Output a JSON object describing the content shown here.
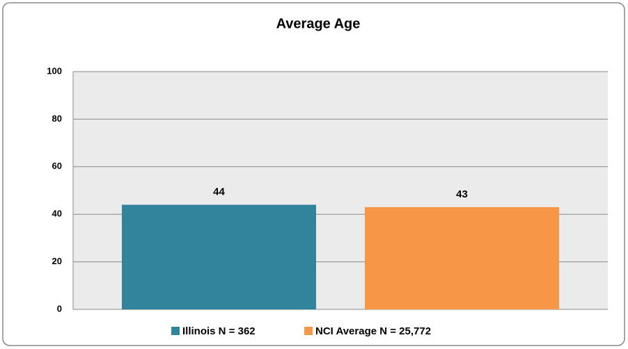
{
  "chart_data": {
    "type": "bar",
    "title": "Average Age",
    "categories": [
      null
    ],
    "series": [
      {
        "name": "Illinois N = 362",
        "color": "#31849b",
        "values": [
          44
        ]
      },
      {
        "name": "NCI Average N = 25,772",
        "color": "#f79646",
        "values": [
          43
        ]
      }
    ],
    "ylim": [
      0,
      100
    ],
    "yticks": [
      0,
      20,
      40,
      60,
      80,
      100
    ],
    "grid": true,
    "legend": "bottom"
  }
}
